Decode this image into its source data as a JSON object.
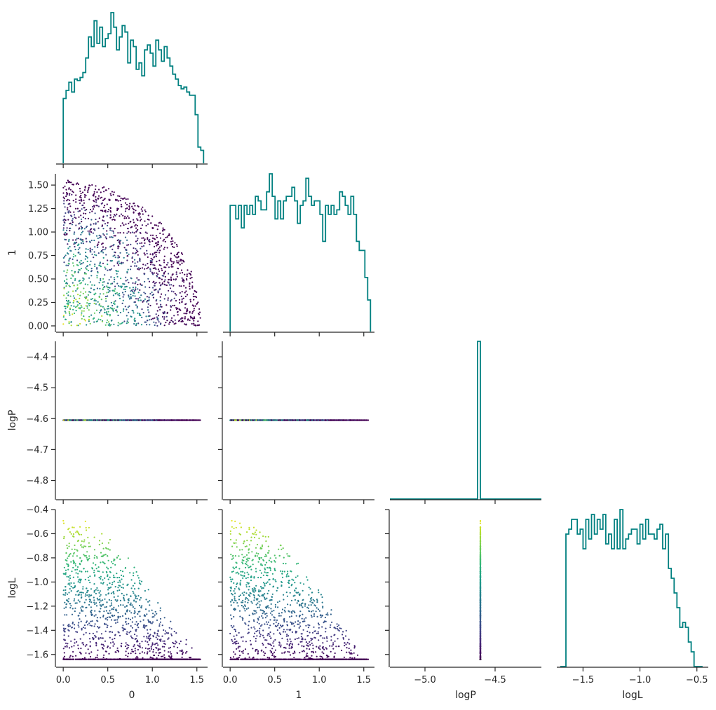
{
  "chart_data": {
    "type": "corner",
    "variables": [
      "0",
      "1",
      "logP",
      "logL"
    ],
    "axis_labels": {
      "x": [
        "0",
        "1",
        "logP",
        "logL"
      ],
      "y": [
        "",
        "1",
        "logP",
        "logL"
      ]
    },
    "ranges": {
      "0": [
        -0.08,
        1.62
      ],
      "1": [
        -0.08,
        1.62
      ],
      "logP": [
        -5.25,
        -4.17
      ],
      "logL": [
        -1.73,
        -0.4
      ]
    },
    "row_y_ranges": {
      "1": [
        -0.06,
        1.62
      ],
      "logP": [
        -4.86,
        -4.35
      ],
      "logL": [
        -1.7,
        -0.4
      ]
    },
    "ticks": {
      "0": {
        "values": [
          0.0,
          0.5,
          1.0,
          1.5
        ],
        "labels": [
          "0.0",
          "0.5",
          "1.0",
          "1.5"
        ]
      },
      "1": {
        "values": [
          0.0,
          0.5,
          1.0,
          1.5
        ],
        "labels": [
          "0.0",
          "0.5",
          "1.0",
          "1.5"
        ]
      },
      "1_y": {
        "values": [
          0.0,
          0.25,
          0.5,
          0.75,
          1.0,
          1.25,
          1.5
        ],
        "labels": [
          "0.00",
          "0.25",
          "0.50",
          "0.75",
          "1.00",
          "1.25",
          "1.50"
        ]
      },
      "logP_x": {
        "values": [
          -5.0,
          -4.5
        ],
        "labels": [
          "−5.0",
          "−4.5"
        ]
      },
      "logP_y": {
        "values": [
          -4.8,
          -4.7,
          -4.6,
          -4.5,
          -4.4
        ],
        "labels": [
          "−4.8",
          "−4.7",
          "−4.6",
          "−4.5",
          "−4.4"
        ]
      },
      "logL_x": {
        "values": [
          -1.5,
          -1.0,
          -0.5
        ],
        "labels": [
          "−1.5",
          "−1.0",
          "−0.5"
        ]
      },
      "logL_y": {
        "values": [
          -1.6,
          -1.4,
          -1.2,
          -1.0,
          -0.8,
          -0.6,
          -0.4
        ],
        "labels": [
          "−1.6",
          "−1.4",
          "−1.2",
          "−1.0",
          "−0.8",
          "−0.6",
          "−0.4"
        ]
      }
    },
    "histograms": {
      "0": {
        "edges": [
          0.0,
          0.0315,
          0.063,
          0.0945,
          0.126,
          0.1575,
          0.189,
          0.2205,
          0.252,
          0.2835,
          0.315,
          0.3465,
          0.378,
          0.4095,
          0.441,
          0.4725,
          0.504,
          0.5355,
          0.567,
          0.5985,
          0.63,
          0.6615,
          0.693,
          0.7245,
          0.756,
          0.7875,
          0.819,
          0.8505,
          0.882,
          0.9135,
          0.945,
          0.9765,
          1.008,
          1.0395,
          1.071,
          1.1025,
          1.134,
          1.1655,
          1.197,
          1.2285,
          1.26,
          1.2915,
          1.323,
          1.3545,
          1.386,
          1.4175,
          1.449,
          1.4805,
          1.512,
          1.5435,
          1.575
        ],
        "counts": [
          40,
          45,
          50,
          44,
          52,
          51,
          53,
          56,
          65,
          78,
          72,
          88,
          74,
          84,
          72,
          77,
          80,
          93,
          84,
          70,
          78,
          85,
          81,
          62,
          76,
          72,
          58,
          62,
          54,
          70,
          73,
          68,
          60,
          76,
          70,
          63,
          72,
          65,
          60,
          55,
          52,
          48,
          46,
          47,
          44,
          42,
          42,
          30,
          10,
          8
        ]
      },
      "1": {
        "edges": [
          0.0,
          0.0315,
          0.063,
          0.0945,
          0.126,
          0.1575,
          0.189,
          0.2205,
          0.252,
          0.2835,
          0.315,
          0.3465,
          0.378,
          0.4095,
          0.441,
          0.4725,
          0.504,
          0.5355,
          0.567,
          0.5985,
          0.63,
          0.6615,
          0.693,
          0.7245,
          0.756,
          0.7875,
          0.819,
          0.8505,
          0.882,
          0.9135,
          0.945,
          0.9765,
          1.008,
          1.0395,
          1.071,
          1.1025,
          1.134,
          1.1655,
          1.197,
          1.2285,
          1.26,
          1.2915,
          1.323,
          1.3545,
          1.386,
          1.4175,
          1.449,
          1.4805,
          1.512,
          1.5435,
          1.575
        ],
        "counts": [
          28,
          28,
          25,
          28,
          23,
          28,
          26,
          28,
          26,
          30,
          29,
          27,
          27,
          31,
          35,
          30,
          25,
          29,
          25,
          29,
          30,
          30,
          32,
          29,
          24,
          28,
          29,
          34,
          30,
          28,
          29,
          29,
          26,
          20,
          28,
          26,
          28,
          26,
          27,
          31,
          30,
          28,
          26,
          30,
          26,
          20,
          18,
          18,
          12,
          7
        ]
      },
      "logP": {
        "edges": [
          -5.25,
          -4.625,
          -4.605,
          -4.17
        ],
        "counts": [
          0,
          100,
          0
        ]
      },
      "logL": {
        "edges": [
          -1.7,
          -1.675,
          -1.65,
          -1.625,
          -1.6,
          -1.575,
          -1.55,
          -1.525,
          -1.5,
          -1.475,
          -1.45,
          -1.425,
          -1.4,
          -1.375,
          -1.35,
          -1.325,
          -1.3,
          -1.275,
          -1.25,
          -1.225,
          -1.2,
          -1.175,
          -1.15,
          -1.125,
          -1.1,
          -1.075,
          -1.05,
          -1.025,
          -1.0,
          -0.975,
          -0.95,
          -0.925,
          -0.9,
          -0.875,
          -0.85,
          -0.825,
          -0.8,
          -0.775,
          -0.75,
          -0.725,
          -0.7,
          -0.675,
          -0.65,
          -0.625,
          -0.6,
          -0.575,
          -0.55,
          -0.525,
          -0.5,
          -0.475,
          -0.45
        ],
        "counts": [
          0,
          0,
          27,
          28,
          30,
          30,
          27,
          28,
          24,
          30,
          26,
          31,
          27,
          30,
          28,
          31,
          25,
          27,
          24,
          30,
          24,
          32,
          24,
          26,
          27,
          28,
          28,
          25,
          29,
          26,
          30,
          27,
          27,
          26,
          28,
          29,
          24,
          27,
          20,
          18,
          15,
          12,
          8,
          9,
          8,
          5,
          3,
          0,
          0,
          0
        ]
      }
    },
    "scatter": {
      "n_points": 1500,
      "x0_range": [
        0.0,
        1.55
      ],
      "x1_range": [
        0.0,
        1.55
      ],
      "radius_max": 1.55,
      "logP_value": -4.605,
      "logL_range": [
        -1.64,
        -0.45
      ],
      "colormap": "viridis",
      "color_by": "logL"
    },
    "colors": {
      "histogram": "#008080",
      "axis": "#262626",
      "viridis": [
        "#440154",
        "#482878",
        "#3e4989",
        "#31688e",
        "#26828e",
        "#1f9e89",
        "#35b779",
        "#6ece58",
        "#b5de2b",
        "#fde725"
      ]
    }
  }
}
